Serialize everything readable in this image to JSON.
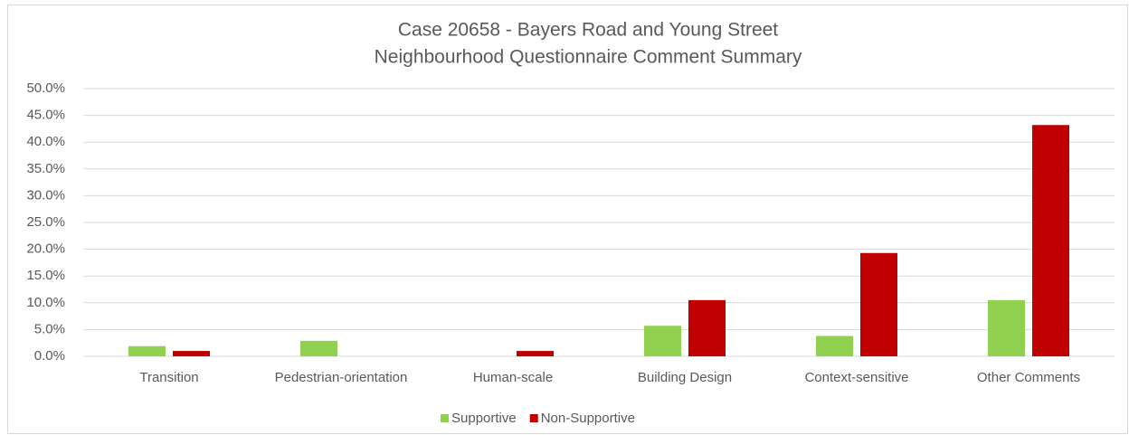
{
  "chart_data": {
    "type": "bar",
    "title": [
      "Case 20658 - Bayers Road and Young Street",
      "Neighbourhood Questionnaire Comment Summary"
    ],
    "categories": [
      "Transition",
      "Pedestrian-orientation",
      "Human-scale",
      "Building Design",
      "Context-sensitive",
      "Other Comments"
    ],
    "series": [
      {
        "name": "Supportive",
        "color": "#92d050",
        "values": [
          1.9,
          2.9,
          0,
          5.7,
          3.8,
          10.5
        ]
      },
      {
        "name": "Non-Supportive",
        "color": "#c00000",
        "values": [
          1.0,
          0,
          1.0,
          10.5,
          19.3,
          43.2
        ]
      }
    ],
    "ylim": [
      0,
      50
    ],
    "yticks": [
      {
        "value": 0,
        "label": "0.0%"
      },
      {
        "value": 5,
        "label": "5.0%"
      },
      {
        "value": 10,
        "label": "10.0%"
      },
      {
        "value": 15,
        "label": "15.0%"
      },
      {
        "value": 20,
        "label": "20.0%"
      },
      {
        "value": 25,
        "label": "25.0%"
      },
      {
        "value": 30,
        "label": "30.0%"
      },
      {
        "value": 35,
        "label": "35.0%"
      },
      {
        "value": 40,
        "label": "40.0%"
      },
      {
        "value": 45,
        "label": "45.0%"
      },
      {
        "value": 50,
        "label": "50.0%"
      }
    ],
    "grid": true,
    "legend": "bottom"
  }
}
